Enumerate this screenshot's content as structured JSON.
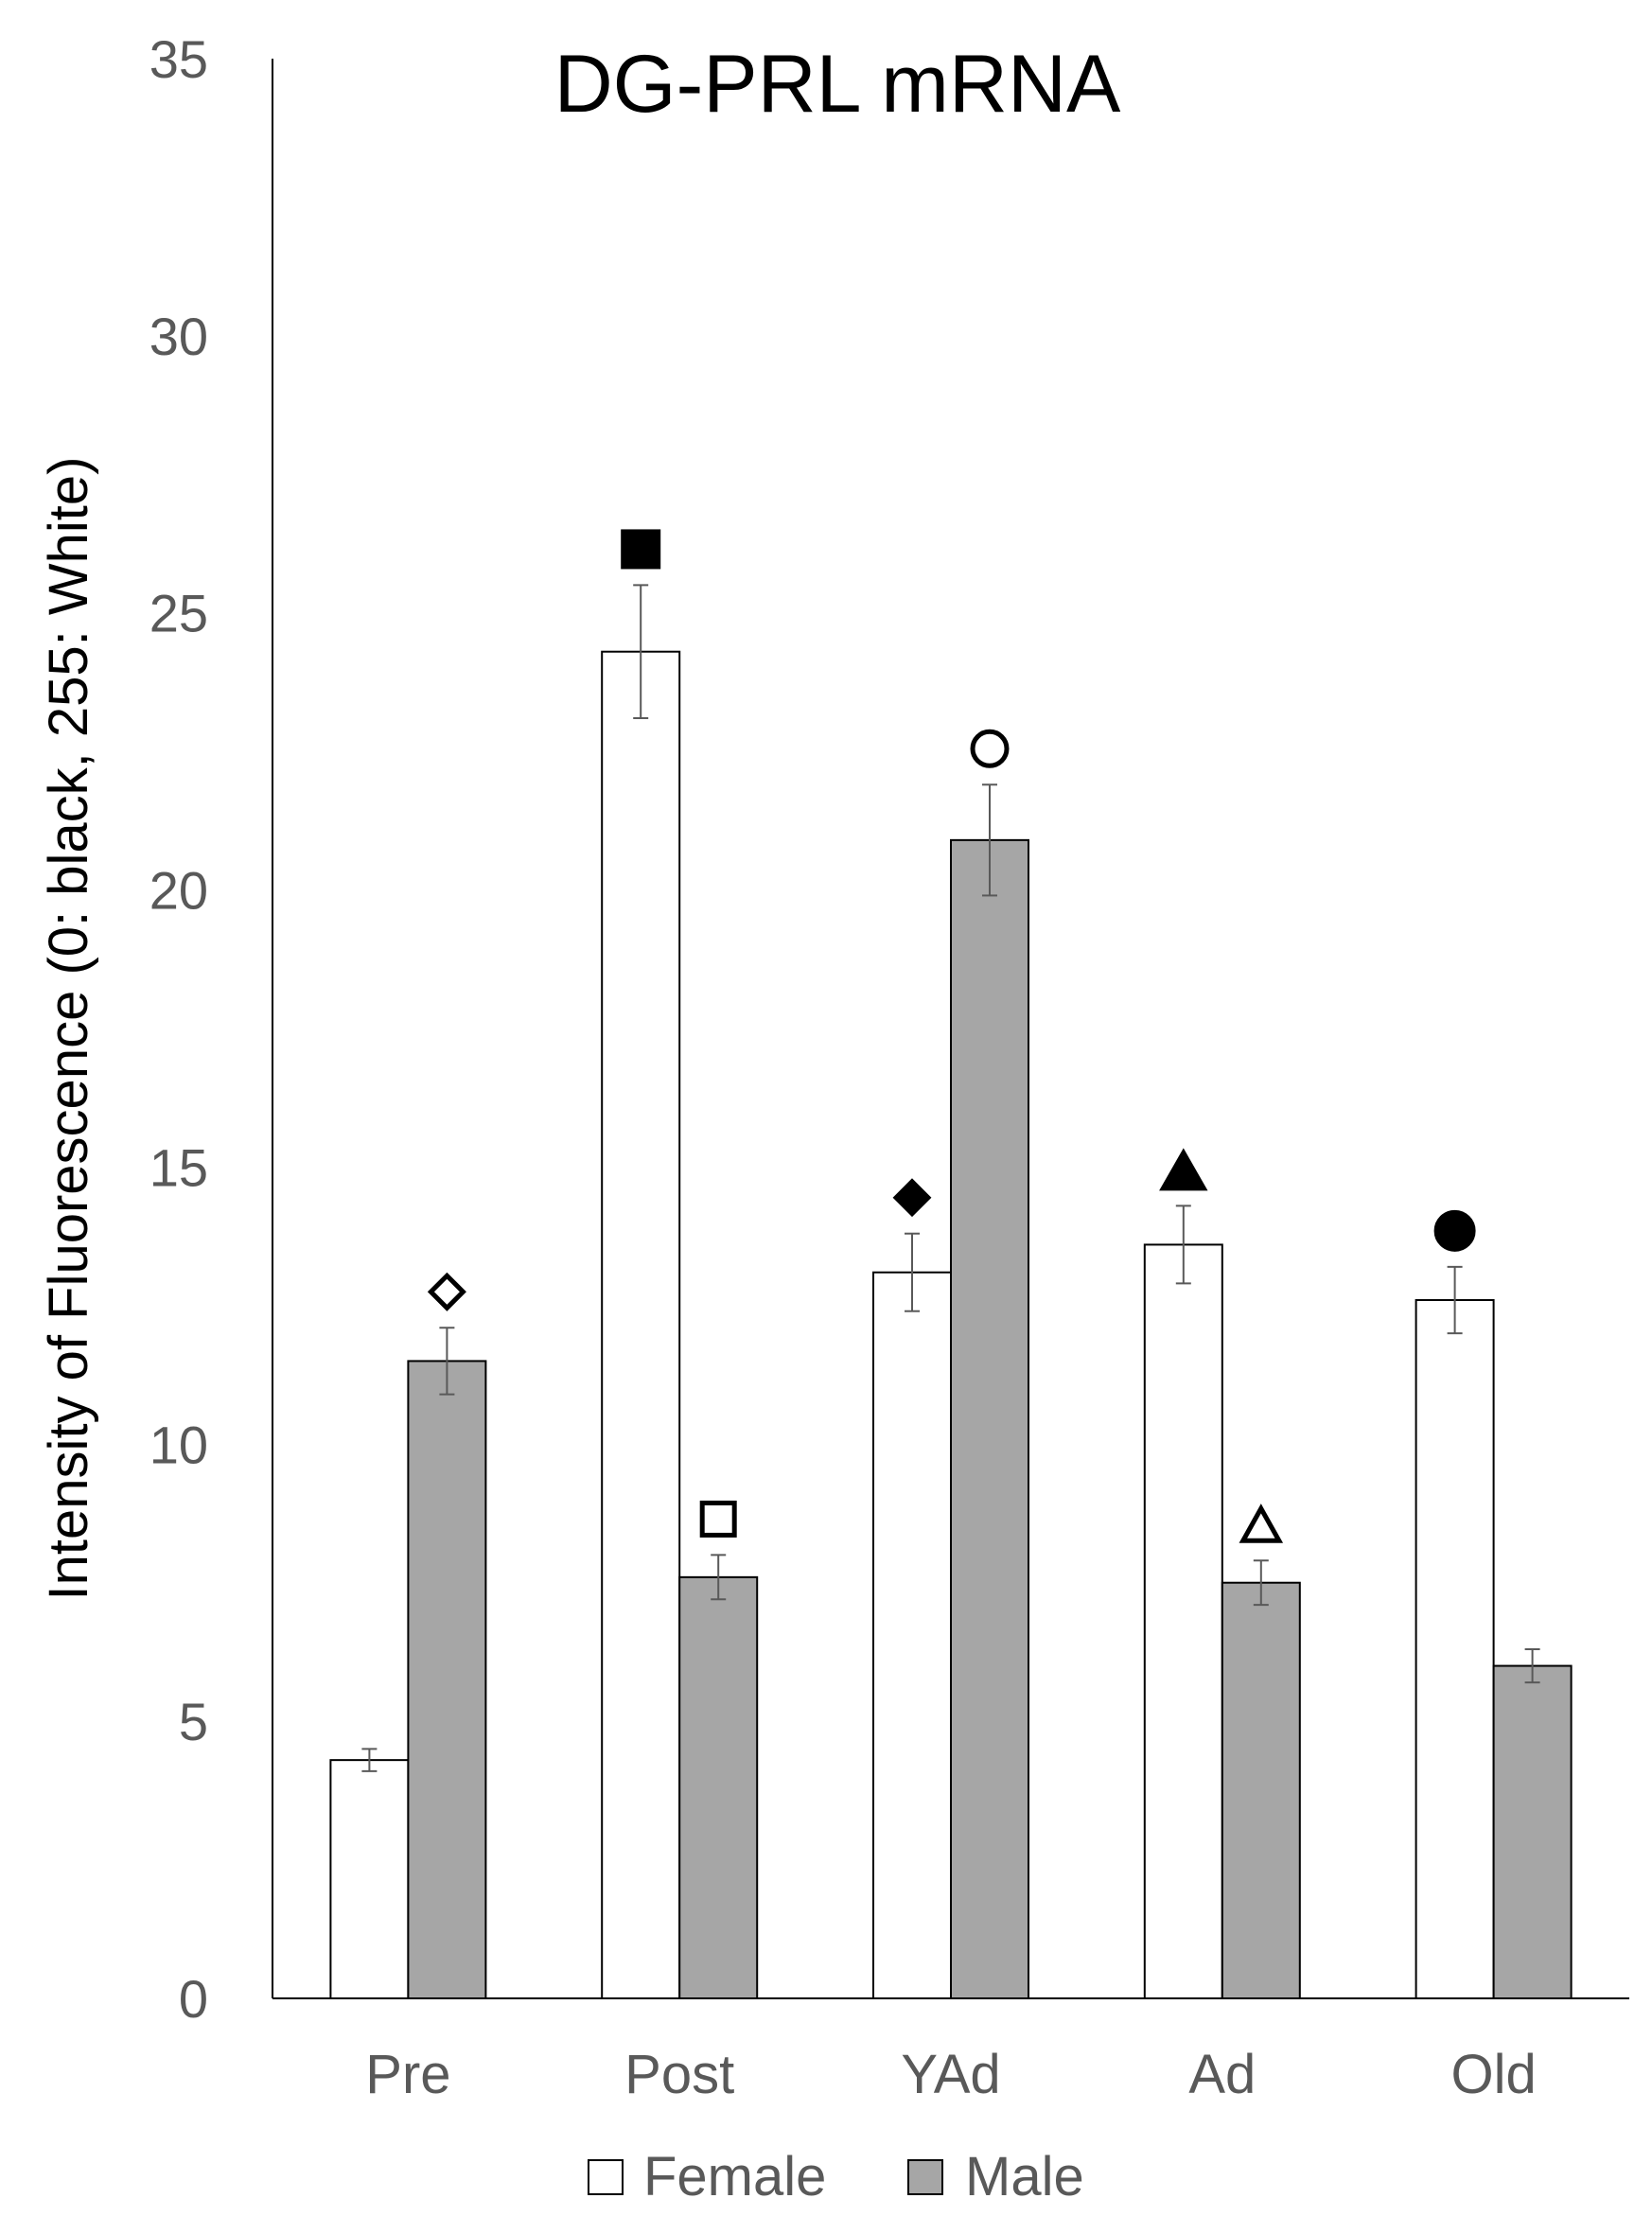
{
  "chart_data": {
    "type": "bar",
    "title": "DG-PRL mRNA",
    "xlabel": "",
    "ylabel": "Intensity of Fluorescence (0: black, 255: White)",
    "ylim": [
      0,
      35
    ],
    "yticks": [
      "0",
      "5",
      "10",
      "15",
      "20",
      "25",
      "30",
      "35"
    ],
    "categories": [
      "Pre",
      "Post",
      "YAd",
      "Ad",
      "Old"
    ],
    "series": [
      {
        "name": "Female",
        "color": "#ffffff",
        "values": [
          4.3,
          24.3,
          13.1,
          13.6,
          12.6
        ],
        "errors": [
          0.2,
          1.2,
          0.7,
          0.7,
          0.6
        ],
        "markers": [
          "",
          "filled-square",
          "filled-diamond",
          "filled-triangle",
          "filled-circle"
        ]
      },
      {
        "name": "Male",
        "color": "#a6a6a6",
        "values": [
          11.5,
          7.6,
          20.9,
          7.5,
          6.0
        ],
        "errors": [
          0.6,
          0.4,
          1.0,
          0.4,
          0.3
        ],
        "markers": [
          "open-diamond",
          "open-square",
          "open-circle",
          "open-triangle",
          ""
        ]
      }
    ],
    "grid": false,
    "legend_position": "bottom-center"
  }
}
